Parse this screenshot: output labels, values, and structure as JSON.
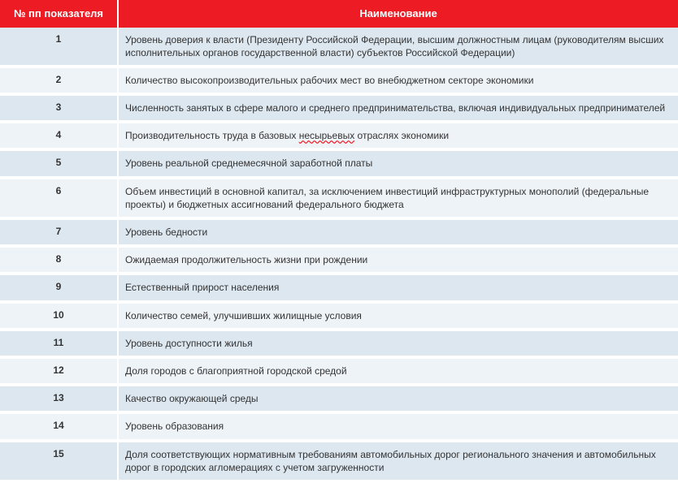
{
  "table": {
    "columns": [
      "№ пп показателя",
      "Наименование"
    ],
    "header_bg": "#ed1c24",
    "header_color": "#ffffff",
    "row_odd_bg": "#dde7f0",
    "row_even_bg": "#eef3f8",
    "text_color": "#333333",
    "font_size_header": 13,
    "font_size_body": 12,
    "col_num_width": 145,
    "rows": [
      {
        "num": "1",
        "name": "Уровень доверия к власти (Президенту Российской Федерации, высшим должностным лицам (руководителям высших исполнительных органов государственной власти) субъектов Российской Федерации)"
      },
      {
        "num": "2",
        "name": "Количество высокопроизводительных рабочих мест во внебюджетном секторе экономики"
      },
      {
        "num": "3",
        "name": "Численность занятых в сфере малого и среднего предпринимательства, включая индивидуальных предпринимателей"
      },
      {
        "num": "4",
        "name_parts": [
          "Производительность труда в базовых ",
          {
            "wavy": "несырьевых"
          },
          " отраслях экономики"
        ]
      },
      {
        "num": "5",
        "name": "Уровень реальной среднемесячной заработной платы"
      },
      {
        "num": "6",
        "name": "Объем инвестиций в основной капитал, за исключением инвестиций инфраструктурных монополий (федеральные проекты) и бюджетных ассигнований федерального бюджета"
      },
      {
        "num": "7",
        "name": "Уровень бедности"
      },
      {
        "num": "8",
        "name": "Ожидаемая продолжительность жизни при рождении"
      },
      {
        "num": "9",
        "name": "Естественный прирост населения"
      },
      {
        "num": "10",
        "name": "Количество семей, улучшивших жилищные условия"
      },
      {
        "num": "11",
        "name": "Уровень доступности жилья"
      },
      {
        "num": "12",
        "name": "Доля городов с благоприятной городской средой"
      },
      {
        "num": "13",
        "name": "Качество окружающей среды"
      },
      {
        "num": "14",
        "name": "Уровень образования"
      },
      {
        "num": "15",
        "name": "Доля соответствующих нормативным требованиям автомобильных дорог регионального значения и автомобильных дорог в городских агломерациях с учетом загруженности"
      }
    ]
  }
}
